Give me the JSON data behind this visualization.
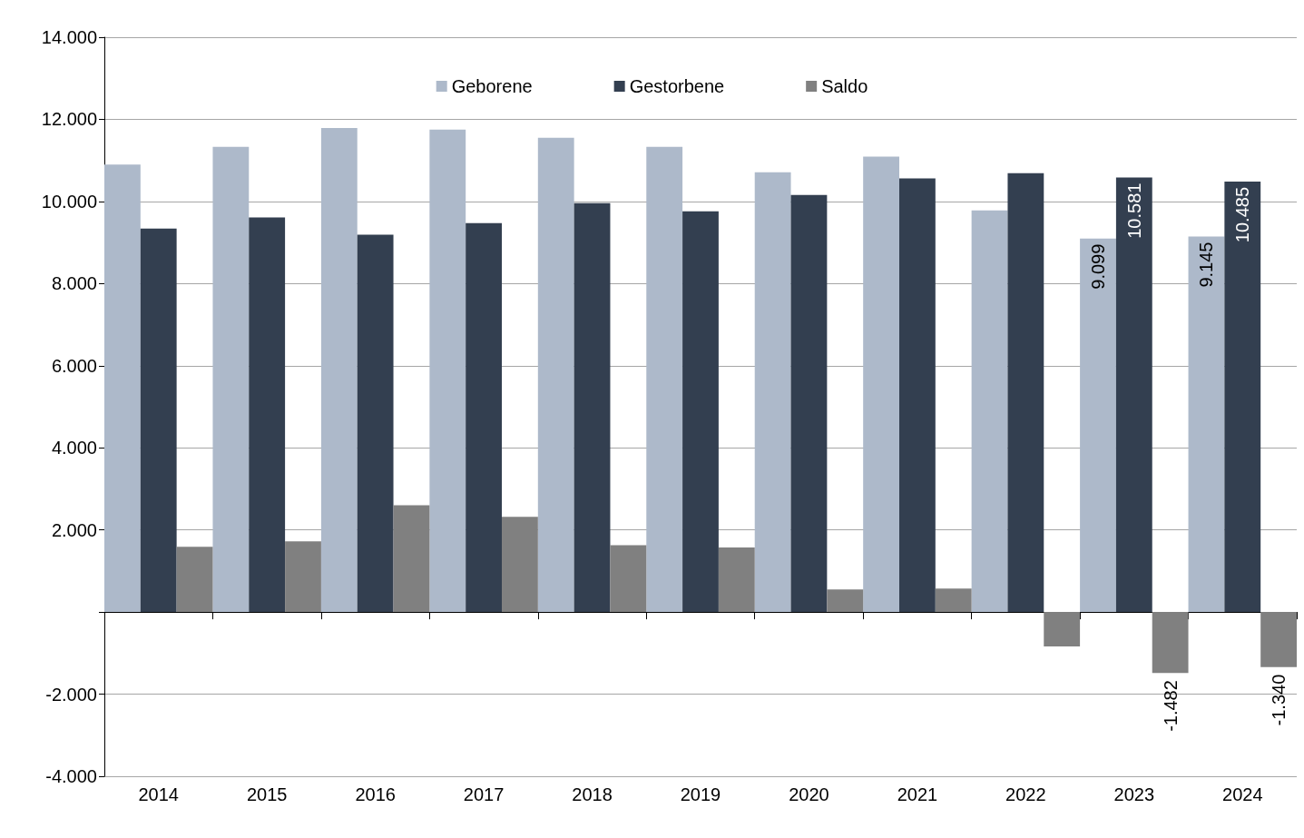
{
  "chart_data": {
    "type": "bar",
    "categories": [
      "2014",
      "2015",
      "2016",
      "2017",
      "2018",
      "2019",
      "2020",
      "2021",
      "2022",
      "2023",
      "2024"
    ],
    "series": [
      {
        "name": "Geborene",
        "color": "#adb9ca",
        "values": [
          10900,
          11330,
          11790,
          11750,
          11550,
          11330,
          10710,
          11090,
          9780,
          9099,
          9145
        ],
        "value_labels": [
          null,
          null,
          null,
          null,
          null,
          null,
          null,
          null,
          null,
          "9.099",
          "9.145"
        ]
      },
      {
        "name": "Gestorbene",
        "color": "#333f50",
        "values": [
          9340,
          9610,
          9190,
          9470,
          9960,
          9760,
          10160,
          10560,
          10690,
          10581,
          10485
        ],
        "value_labels": [
          null,
          null,
          null,
          null,
          null,
          null,
          null,
          null,
          null,
          "10.581",
          "10.485"
        ]
      },
      {
        "name": "Saldo",
        "color": "#808080",
        "values": [
          1590,
          1720,
          2600,
          2320,
          1630,
          1570,
          550,
          570,
          -840,
          -1482,
          -1340
        ],
        "value_labels": [
          null,
          null,
          null,
          null,
          null,
          null,
          null,
          null,
          null,
          "-1.482",
          "-1.340"
        ]
      }
    ],
    "ylim": [
      -4000,
      14000
    ],
    "yticks": [
      {
        "value": -4000,
        "label": "-4.000"
      },
      {
        "value": -2000,
        "label": "-2.000"
      },
      {
        "value": 0,
        "label": null
      },
      {
        "value": 2000,
        "label": "2.000"
      },
      {
        "value": 4000,
        "label": "4.000"
      },
      {
        "value": 6000,
        "label": "6.000"
      },
      {
        "value": 8000,
        "label": "8.000"
      },
      {
        "value": 10000,
        "label": "10.000"
      },
      {
        "value": 12000,
        "label": "12.000"
      },
      {
        "value": 14000,
        "label": "14.000"
      }
    ],
    "grid": "y",
    "legend": "top"
  }
}
